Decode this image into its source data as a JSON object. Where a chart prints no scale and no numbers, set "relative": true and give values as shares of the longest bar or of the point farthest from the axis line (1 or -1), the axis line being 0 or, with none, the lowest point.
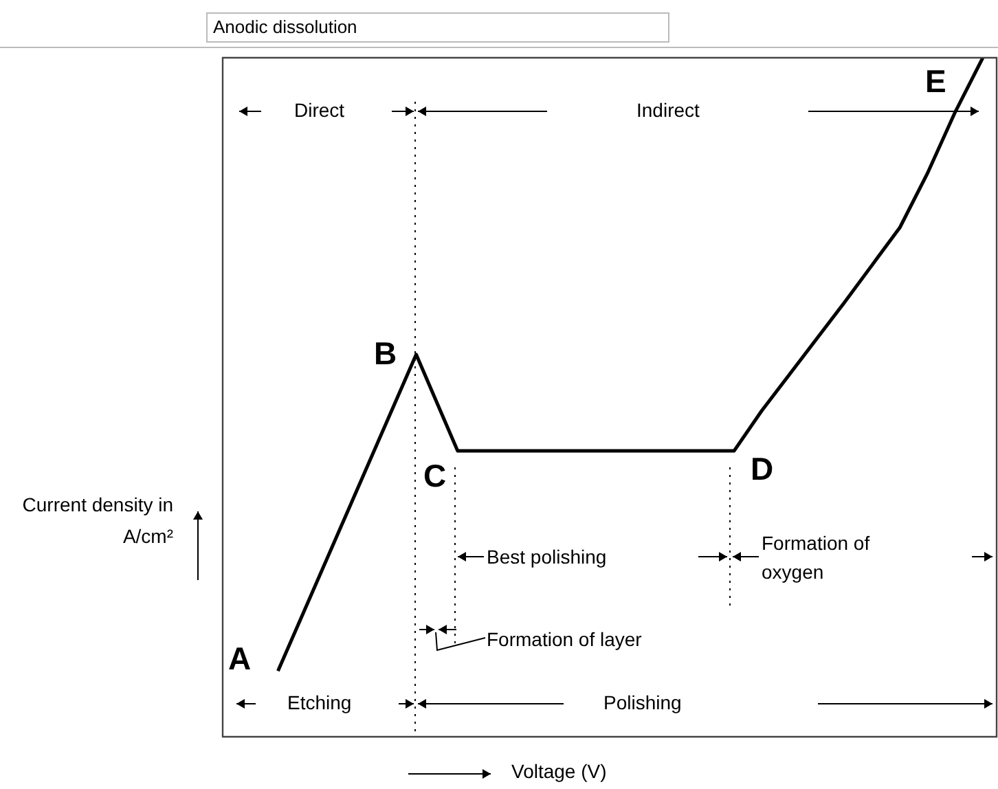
{
  "chart_data": {
    "type": "line",
    "title": "Anodic dissolution",
    "xlabel": "Voltage (V)",
    "ylabel": "Current density in A/cm²",
    "relative": true,
    "marker": "none",
    "categories": [
      null,
      null,
      null,
      null,
      null,
      null,
      null,
      null,
      null,
      null,
      null,
      null,
      null,
      null,
      null,
      null,
      null,
      null,
      null,
      null,
      null,
      null,
      null,
      null,
      null,
      null,
      null,
      null,
      null,
      null,
      null,
      null,
      null,
      null,
      null,
      null,
      null,
      null,
      null,
      null,
      null,
      null,
      null,
      null,
      null,
      null,
      null,
      null,
      null,
      null,
      null,
      null,
      null,
      null,
      null,
      null,
      null
    ],
    "series": [
      {
        "color": "#000000",
        "values": [
          null,
          null,
          null,
          null,
          0.097,
          null,
          null,
          null,
          null,
          null,
          null,
          null,
          null,
          null,
          0.563,
          null,
          null,
          0.421,
          null,
          null,
          null,
          null,
          null,
          null,
          null,
          null,
          null,
          null,
          null,
          null,
          null,
          null,
          null,
          null,
          null,
          null,
          null,
          0.421,
          null,
          0.48,
          null,
          null,
          0.56,
          null,
          null,
          0.64,
          null,
          null,
          null,
          0.75,
          null,
          0.83,
          null,
          0.92,
          null,
          1.0,
          null
        ]
      }
    ],
    "annotations": [
      "A",
      "B",
      "C",
      "D",
      "E",
      "Direct",
      "Indirect",
      "Etching",
      "Polishing",
      "Best polishing",
      "Formation of oxygen",
      "Formation of layer"
    ]
  }
}
